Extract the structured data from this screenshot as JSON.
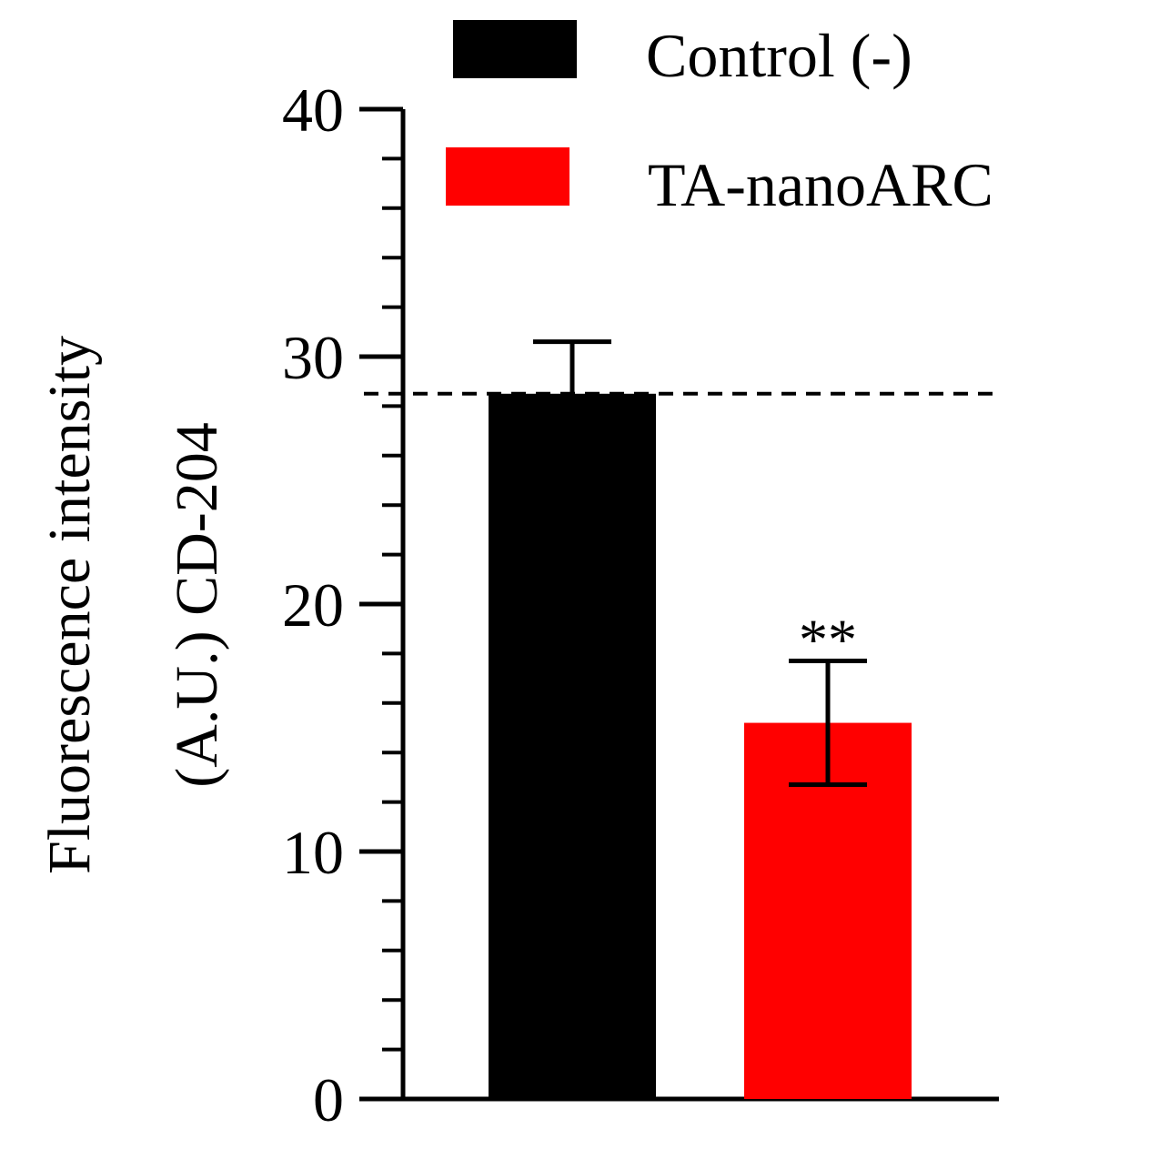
{
  "chart_data": {
    "type": "bar",
    "categories": [
      "Control (-)",
      "TA-nanoARC"
    ],
    "values": [
      28.5,
      15.2
    ],
    "errors": [
      2.1,
      2.5
    ],
    "colors": [
      "#000000",
      "#ff0000"
    ],
    "ylabel_line1": "Fluorescence intensity",
    "ylabel_line2": "(A.U.) CD-204",
    "ylim": [
      0,
      40
    ],
    "yticks": [
      0,
      10,
      20,
      30,
      40
    ],
    "minor_step": 2,
    "reference_line": 28.5,
    "annotations": [
      {
        "category": "TA-nanoARC",
        "text": "**"
      }
    ],
    "legend": {
      "position": "top-right",
      "entries": [
        {
          "label": "Control (-)",
          "color": "#000000"
        },
        {
          "label": "TA-nanoARC",
          "color": "#ff0000"
        }
      ]
    }
  }
}
